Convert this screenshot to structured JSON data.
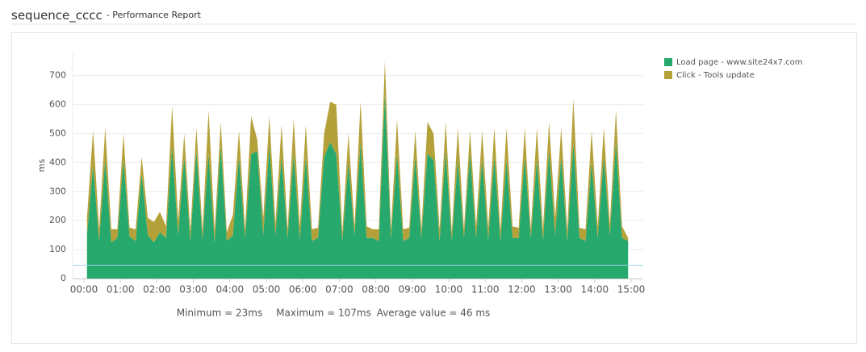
{
  "chart_data": {
    "type": "stacked_area",
    "title": "sequence_cccc",
    "subtitle": "- Performance Report",
    "y_label": "ms",
    "x": [
      "00:05",
      "00:15",
      "00:25",
      "00:35",
      "00:45",
      "00:55",
      "01:05",
      "01:15",
      "01:25",
      "01:35",
      "01:45",
      "01:55",
      "02:05",
      "02:15",
      "02:25",
      "02:35",
      "02:45",
      "02:55",
      "03:05",
      "03:15",
      "03:25",
      "03:35",
      "03:45",
      "03:55",
      "04:05",
      "04:15",
      "04:25",
      "04:35",
      "04:45",
      "04:55",
      "05:05",
      "05:15",
      "05:25",
      "05:35",
      "05:45",
      "05:55",
      "06:05",
      "06:15",
      "06:25",
      "06:35",
      "06:45",
      "06:55",
      "07:05",
      "07:15",
      "07:25",
      "07:35",
      "07:45",
      "07:55",
      "08:05",
      "08:15",
      "08:25",
      "08:35",
      "08:45",
      "08:55",
      "09:05",
      "09:15",
      "09:25",
      "09:35",
      "09:45",
      "09:55",
      "10:05",
      "10:15",
      "10:25",
      "10:35",
      "10:45",
      "10:55",
      "11:05",
      "11:15",
      "11:25",
      "11:35",
      "11:45",
      "11:55",
      "12:05",
      "12:15",
      "12:25",
      "12:35",
      "12:45",
      "12:55",
      "13:05",
      "13:15",
      "13:25",
      "13:35",
      "13:45",
      "13:55",
      "14:05",
      "14:15",
      "14:25",
      "14:35",
      "14:45",
      "14:55"
    ],
    "series": [
      {
        "name": "Load page - www.site24x7.com",
        "color": "#27a96e",
        "values": [
          150,
          390,
          130,
          410,
          125,
          140,
          410,
          145,
          130,
          360,
          150,
          125,
          160,
          140,
          455,
          150,
          420,
          130,
          440,
          135,
          430,
          125,
          460,
          130,
          150,
          420,
          140,
          430,
          440,
          150,
          460,
          150,
          420,
          140,
          430,
          135,
          420,
          130,
          140,
          420,
          470,
          430,
          130,
          400,
          150,
          470,
          140,
          140,
          130,
          640,
          140,
          430,
          130,
          140,
          420,
          140,
          430,
          410,
          130,
          440,
          130,
          410,
          140,
          430,
          140,
          410,
          135,
          420,
          130,
          410,
          140,
          140,
          420,
          140,
          410,
          130,
          440,
          150,
          420,
          130,
          470,
          140,
          130,
          400,
          140,
          420,
          150,
          470,
          140,
          130
        ]
      },
      {
        "name": "Click - Tools update",
        "color": "#b5a13a",
        "values": [
          60,
          120,
          40,
          110,
          45,
          30,
          90,
          30,
          40,
          60,
          60,
          70,
          70,
          40,
          140,
          50,
          80,
          35,
          80,
          30,
          150,
          40,
          80,
          30,
          70,
          90,
          30,
          130,
          40,
          60,
          100,
          40,
          110,
          30,
          120,
          45,
          110,
          40,
          35,
          80,
          140,
          170,
          30,
          100,
          30,
          140,
          40,
          30,
          40,
          110,
          30,
          120,
          40,
          35,
          90,
          30,
          110,
          90,
          40,
          100,
          30,
          110,
          30,
          80,
          40,
          100,
          40,
          100,
          35,
          110,
          40,
          35,
          100,
          30,
          110,
          40,
          100,
          60,
          100,
          35,
          150,
          35,
          40,
          110,
          40,
          100,
          40,
          110,
          40,
          10
        ]
      }
    ],
    "xlim": [
      "00:00",
      "15:00"
    ],
    "xticks": [
      "00:00",
      "01:00",
      "02:00",
      "03:00",
      "04:00",
      "05:00",
      "06:00",
      "07:00",
      "08:00",
      "09:00",
      "10:00",
      "11:00",
      "12:00",
      "13:00",
      "14:00",
      "15:00"
    ],
    "ylim": [
      0,
      780
    ],
    "yticks": [
      0,
      100,
      200,
      300,
      400,
      500,
      600,
      700
    ],
    "grid": true,
    "reference_line": {
      "value": 46,
      "color": "#9fd4ec"
    },
    "footer": [
      "Minimum = 23ms",
      "Maximum = 107ms",
      "Average value = 46 ms"
    ],
    "legend": "top-right"
  }
}
